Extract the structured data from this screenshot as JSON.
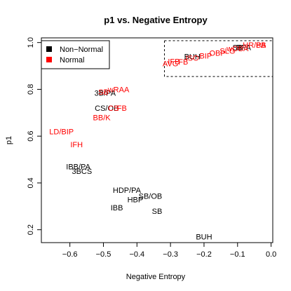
{
  "chart_data": {
    "type": "scatter",
    "title": "p1 vs. Negative Entropy",
    "xlabel": "Negative Entropy",
    "ylabel": "p1",
    "xlim": [
      -0.685,
      0.005
    ],
    "ylim": [
      0.145,
      1.02
    ],
    "x_ticks": [
      {
        "value": -0.6,
        "label": "−0.6"
      },
      {
        "value": -0.5,
        "label": "−0.5"
      },
      {
        "value": -0.4,
        "label": "−0.4"
      },
      {
        "value": -0.3,
        "label": "−0.3"
      },
      {
        "value": -0.2,
        "label": "−0.2"
      },
      {
        "value": -0.1,
        "label": "−0.1"
      },
      {
        "value": 0.0,
        "label": "0.0"
      }
    ],
    "y_ticks": [
      {
        "value": 0.2,
        "label": "0.2"
      },
      {
        "value": 0.4,
        "label": "0.4"
      },
      {
        "value": 0.6,
        "label": "0.6"
      },
      {
        "value": 0.8,
        "label": "0.8"
      },
      {
        "value": 1.0,
        "label": "1.0"
      }
    ],
    "grid": false,
    "legend": {
      "placement": "top-left",
      "items": [
        {
          "label": "Non−Normal",
          "color": "#000000"
        },
        {
          "label": "Normal",
          "color": "#ff0000"
        }
      ]
    },
    "highlight_box": {
      "x": [
        -0.318,
        0.005
      ],
      "y": [
        0.855,
        1.008
      ]
    },
    "series": [
      {
        "name": "Non−Normal",
        "color": "#000000",
        "points": [
          {
            "label": "3B/PA",
            "x": -0.495,
            "y": 0.785
          },
          {
            "label": "CS/OB",
            "x": -0.49,
            "y": 0.72
          },
          {
            "label": "IBB/PA",
            "x": -0.575,
            "y": 0.47
          },
          {
            "label": "3B",
            "x": -0.58,
            "y": 0.45
          },
          {
            "label": "CS",
            "x": -0.55,
            "y": 0.45
          },
          {
            "label": "HDP/PA",
            "x": -0.43,
            "y": 0.37
          },
          {
            "label": "SB/OB",
            "x": -0.36,
            "y": 0.345
          },
          {
            "label": "HBP",
            "x": -0.405,
            "y": 0.33
          },
          {
            "label": "IBB",
            "x": -0.46,
            "y": 0.295
          },
          {
            "label": "SB",
            "x": -0.34,
            "y": 0.28
          },
          {
            "label": "BUH",
            "x": -0.2,
            "y": 0.17
          },
          {
            "label": "BUH",
            "x": -0.235,
            "y": 0.94
          },
          {
            "label": "SB",
            "x": -0.1,
            "y": 0.98
          },
          {
            "label": "BPA",
            "x": -0.082,
            "y": 0.98
          }
        ]
      },
      {
        "name": "Normal",
        "color": "#ff0000",
        "points": [
          {
            "label": "wRAA",
            "x": -0.455,
            "y": 0.8
          },
          {
            "label": "SB",
            "x": -0.5,
            "y": 0.79
          },
          {
            "label": "CS",
            "x": -0.47,
            "y": 0.72
          },
          {
            "label": "FB",
            "x": -0.445,
            "y": 0.72
          },
          {
            "label": "BB/K",
            "x": -0.505,
            "y": 0.68
          },
          {
            "label": "LD/BIP",
            "x": -0.625,
            "y": 0.62
          },
          {
            "label": "IFH",
            "x": -0.58,
            "y": 0.565
          },
          {
            "label": "IFB",
            "x": -0.29,
            "y": 0.92
          },
          {
            "label": "AVG",
            "x": -0.3,
            "y": 0.91
          },
          {
            "label": "FB",
            "x": -0.262,
            "y": 0.918
          },
          {
            "label": "ISO",
            "x": -0.235,
            "y": 0.935
          },
          {
            "label": "BIP",
            "x": -0.195,
            "y": 0.944
          },
          {
            "label": "OBP",
            "x": -0.16,
            "y": 0.955
          },
          {
            "label": "SLG",
            "x": -0.13,
            "y": 0.965
          },
          {
            "label": "wOBA",
            "x": -0.1,
            "y": 0.975
          },
          {
            "label": "HR/PA",
            "x": -0.05,
            "y": 0.99
          },
          {
            "label": "BB",
            "x": -0.03,
            "y": 0.99
          }
        ]
      }
    ]
  }
}
